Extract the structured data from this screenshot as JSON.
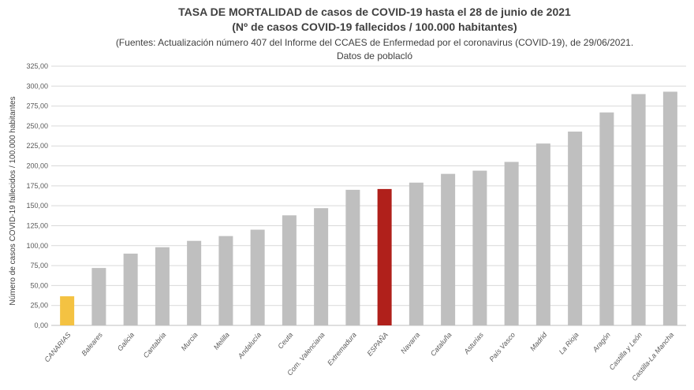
{
  "chart_data": {
    "type": "bar",
    "title": "TASA DE MORTALIDAD de casos de COVID-19 hasta el 28 de junio de 2021",
    "subtitle": "(Nº de casos COVID-19 fallecidos / 100.000 habitantes)",
    "source_line1": "(Fuentes: Actualización número 407 del Informe del CCAES de Enfermedad por el coronavirus (COVID-19), de 29/06/2021.",
    "source_line2": "Datos de poblacló",
    "xlabel": "",
    "ylabel": "Número de casos COVID-19 fallecidos / 100.000 habitantes",
    "ylim": [
      0,
      325
    ],
    "yticks": [
      "0,00",
      "25,00",
      "50,00",
      "75,00",
      "100,00",
      "125,00",
      "150,00",
      "175,00",
      "200,00",
      "225,00",
      "250,00",
      "275,00",
      "300,00",
      "325,00"
    ],
    "grid": true,
    "categories": [
      "CANARIAS",
      "Baleares",
      "Galicia",
      "Cantabria",
      "Murcia",
      "Melilla",
      "Andalucía",
      "Ceuta",
      "Com. Valenciana",
      "Extremadura",
      "ESPAÑA",
      "Navarra",
      "Cataluña",
      "Asturias",
      "País Vasco",
      "Madrid",
      "La Rioja",
      "Aragón",
      "Castilla y León",
      "Castilla-La Mancha"
    ],
    "values": [
      36.5,
      72,
      90,
      98,
      106,
      112,
      120,
      138,
      147,
      170,
      171,
      179,
      190,
      194,
      205,
      228,
      243,
      267,
      290,
      293
    ],
    "colors": {
      "default": "#bfbfbf",
      "CANARIAS": "#f4c242",
      "ESPAÑA": "#b0201b"
    }
  }
}
